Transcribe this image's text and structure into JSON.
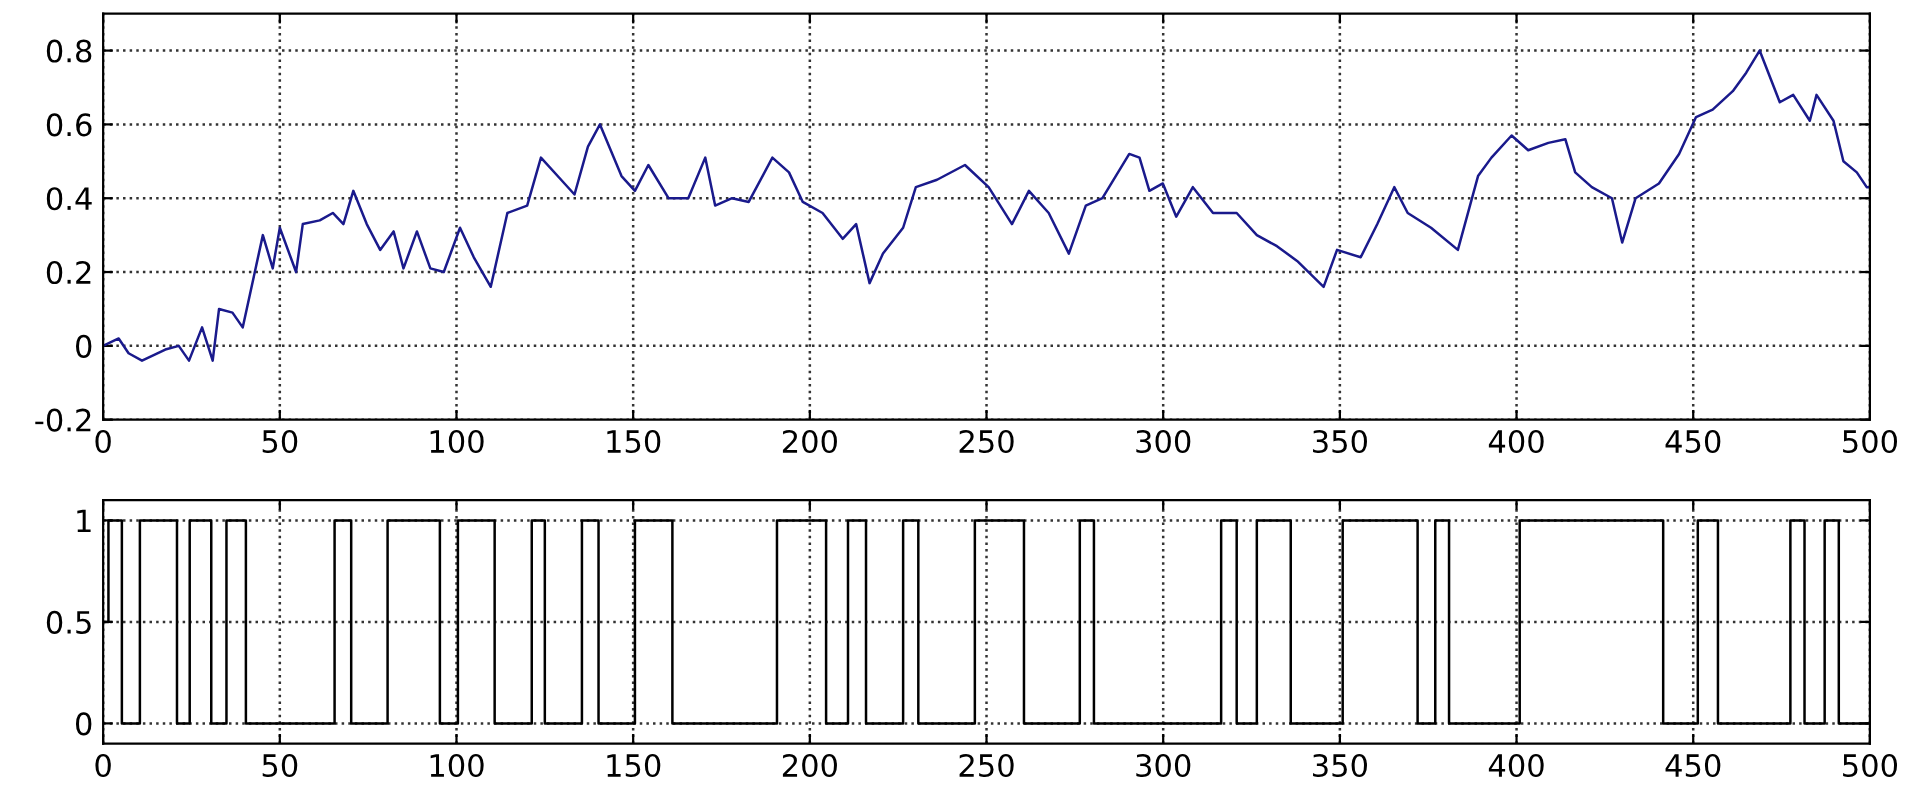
{
  "chart_data": [
    {
      "type": "line",
      "xlim": [
        0,
        500
      ],
      "xticks": [
        0,
        50,
        100,
        150,
        200,
        250,
        300,
        350,
        400,
        450,
        500
      ],
      "ylim": [
        -0.2,
        0.9
      ],
      "yticks": [
        -0.2,
        0,
        0.2,
        0.4,
        0.6,
        0.8
      ],
      "grid": true,
      "line_style": "solid",
      "marker": "none",
      "series": [
        {
          "color": "#1a1a8c",
          "x": [
            0,
            4.4,
            7.2,
            11,
            17.6,
            21.4,
            24.3,
            28,
            31,
            32.8,
            36.6,
            39.5,
            45.2,
            48,
            50,
            54.6,
            56.5,
            61.3,
            65,
            68,
            70.8,
            74.6,
            78.4,
            82.2,
            85,
            88.8,
            92.6,
            96.4,
            101,
            104.9,
            109.7,
            114.4,
            120,
            123.9,
            129.6,
            133.4,
            137.2,
            140.6,
            146.7,
            150.5,
            154.3,
            160,
            165.6,
            170.4,
            173.2,
            178,
            182.7,
            189.4,
            194.1,
            198,
            203.6,
            209.3,
            213.1,
            216.9,
            220.7,
            226.4,
            230,
            236,
            243.9,
            250.6,
            257.2,
            262,
            267.6,
            273.3,
            278.1,
            282.8,
            290.4,
            293.3,
            296.1,
            299.9,
            303.7,
            308.4,
            314.1,
            320.8,
            326.5,
            332.2,
            337.9,
            345.4,
            349.2,
            355.9,
            360.6,
            365.4,
            369.2,
            375.8,
            383.4,
            389.1,
            392.9,
            398.6,
            403.3,
            409,
            413.8,
            416.6,
            421.3,
            427,
            429.9,
            433.7,
            440.3,
            446,
            450.8,
            455.5,
            461.2,
            465,
            468.8,
            474.5,
            478.3,
            483,
            484.9,
            489.7,
            492.5,
            496.3,
            499.1,
            500
          ],
          "values": [
            0,
            0.02,
            -0.02,
            -0.04,
            -0.01,
            0,
            -0.04,
            0.05,
            -0.04,
            0.1,
            0.09,
            0.05,
            0.3,
            0.21,
            0.32,
            0.2,
            0.33,
            0.34,
            0.36,
            0.33,
            0.42,
            0.33,
            0.26,
            0.31,
            0.21,
            0.31,
            0.21,
            0.2,
            0.32,
            0.24,
            0.16,
            0.36,
            0.38,
            0.51,
            0.45,
            0.41,
            0.54,
            0.6,
            0.46,
            0.42,
            0.49,
            0.4,
            0.4,
            0.51,
            0.38,
            0.4,
            0.39,
            0.51,
            0.47,
            0.39,
            0.36,
            0.29,
            0.33,
            0.17,
            0.25,
            0.32,
            0.43,
            0.45,
            0.49,
            0.43,
            0.33,
            0.42,
            0.36,
            0.25,
            0.38,
            0.4,
            0.52,
            0.51,
            0.42,
            0.44,
            0.35,
            0.43,
            0.36,
            0.36,
            0.3,
            0.27,
            0.23,
            0.16,
            0.26,
            0.24,
            0.33,
            0.43,
            0.36,
            0.32,
            0.26,
            0.46,
            0.51,
            0.57,
            0.53,
            0.55,
            0.56,
            0.47,
            0.43,
            0.4,
            0.28,
            0.4,
            0.44,
            0.52,
            0.62,
            0.64,
            0.69,
            0.74,
            0.8,
            0.66,
            0.68,
            0.61,
            0.68,
            0.61,
            0.5,
            0.47,
            0.43,
            0.43
          ]
        }
      ]
    },
    {
      "type": "line",
      "xlim": [
        0,
        500
      ],
      "xticks": [
        0,
        50,
        100,
        150,
        200,
        250,
        300,
        350,
        400,
        450,
        500
      ],
      "ylim": [
        -0.1,
        1.1
      ],
      "yticks": [
        0,
        0.5,
        1
      ],
      "grid": true,
      "line_style": "solid",
      "marker": "none",
      "series": [
        {
          "color": "#000000",
          "x": [
            0,
            1.5,
            1.5,
            5.3,
            5.3,
            10.4,
            10.4,
            20.9,
            20.9,
            24.5,
            24.5,
            30.6,
            30.6,
            34.9,
            34.9,
            40.4,
            40.4,
            65.5,
            65.5,
            70.2,
            70.2,
            80.5,
            80.5,
            95.3,
            95.3,
            100.4,
            100.4,
            110.8,
            110.8,
            121.3,
            121.3,
            125,
            125,
            135.5,
            135.5,
            140.2,
            140.2,
            150.5,
            150.5,
            161.1,
            161.1,
            190.7,
            190.7,
            204.6,
            204.6,
            210.8,
            210.8,
            215.9,
            215.9,
            226.4,
            226.4,
            230.7,
            230.7,
            246.7,
            246.7,
            260.6,
            260.6,
            276.4,
            276.4,
            280.4,
            280.4,
            316.4,
            316.4,
            320.8,
            320.8,
            326.5,
            326.5,
            336.1,
            336.1,
            350.8,
            350.8,
            372,
            372,
            377,
            377,
            380.9,
            380.9,
            400.9,
            400.9,
            441.5,
            441.5,
            451.3,
            451.3,
            457,
            457,
            477.5,
            477.5,
            481.5,
            481.5,
            487.2,
            487.2,
            491.2,
            491.2,
            500
          ],
          "values": [
            0.5,
            0.5,
            1,
            1,
            0,
            0,
            1,
            1,
            0,
            0,
            1,
            1,
            0,
            0,
            1,
            1,
            0,
            0,
            1,
            1,
            0,
            0,
            1,
            1,
            0,
            0,
            1,
            1,
            0,
            0,
            1,
            1,
            0,
            0,
            1,
            1,
            0,
            0,
            1,
            1,
            0,
            0,
            1,
            1,
            0,
            0,
            1,
            1,
            0,
            0,
            1,
            1,
            0,
            0,
            1,
            1,
            0,
            0,
            1,
            1,
            0,
            0,
            1,
            1,
            0,
            0,
            1,
            1,
            0,
            0,
            1,
            1,
            0,
            0,
            1,
            1,
            0,
            0,
            1,
            1,
            0,
            0,
            1,
            1,
            0,
            0,
            1,
            1,
            0,
            0,
            1,
            1,
            0,
            0
          ]
        }
      ]
    }
  ]
}
